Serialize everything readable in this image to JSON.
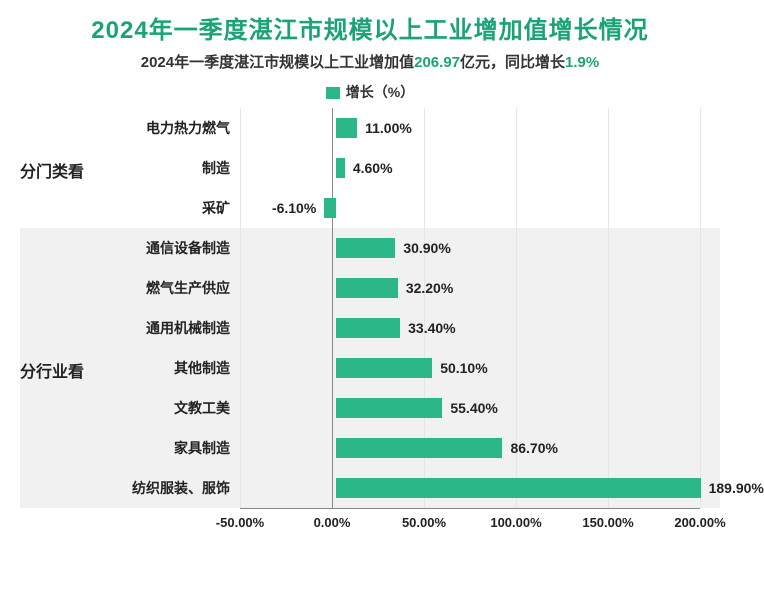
{
  "title": "2024年一季度湛江市规模以上工业增加值增长情况",
  "title_fontsize": 24,
  "title_color": "#1aa376",
  "subtitle": {
    "prefix": "2024年一季度湛江市规模以上工业增加值",
    "value1": "206.97",
    "mid": "亿元，同比增长",
    "value2": "1.9%",
    "fontsize": 15,
    "highlight_color": "#1aa376"
  },
  "legend": {
    "label": "增长（%）",
    "color": "#2bb787",
    "fontsize": 14
  },
  "chart": {
    "type": "bar-horizontal",
    "xmin": -50,
    "xmax": 200,
    "xtick_step": 50,
    "xtick_format_suffix": ".00%",
    "value_format_suffix": "%",
    "bar_color": "#2bb787",
    "grid_color": "#e5e5e5",
    "zero_line_color": "#888888",
    "band_bg": "#f1f1f1",
    "label_fontsize": 14,
    "value_fontsize": 14,
    "tick_fontsize": 13,
    "group_label_fontsize": 16,
    "bars": [
      {
        "group": "分门类看",
        "label": "电力热力燃气",
        "value": 11.0
      },
      {
        "group": "分门类看",
        "label": "制造",
        "value": 4.6
      },
      {
        "group": "分门类看",
        "label": "采矿",
        "value": -6.1
      },
      {
        "group": "分行业看",
        "label": "通信设备制造",
        "value": 30.9
      },
      {
        "group": "分行业看",
        "label": "燃气生产供应",
        "value": 32.2
      },
      {
        "group": "分行业看",
        "label": "通用机械制造",
        "value": 33.4
      },
      {
        "group": "分行业看",
        "label": "其他制造",
        "value": 50.1
      },
      {
        "group": "分行业看",
        "label": "文教工美",
        "value": 55.4
      },
      {
        "group": "分行业看",
        "label": "家具制造",
        "value": 86.7
      },
      {
        "group": "分行业看",
        "label": "纺织服装、服饰",
        "value": 189.9
      }
    ]
  }
}
